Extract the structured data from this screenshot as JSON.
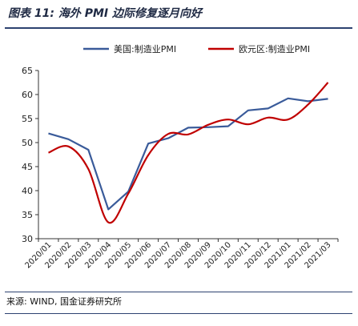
{
  "header": {
    "title": "图表 11:  海外 PMI 边际修复逐月向好"
  },
  "footer": {
    "source": "来源: WIND, 国金证券研究所"
  },
  "chart_data": {
    "type": "line",
    "categories": [
      "2020/01",
      "2020/02",
      "2020/03",
      "2020/04",
      "2020/05",
      "2020/06",
      "2020/07",
      "2020/08",
      "2020/09",
      "2020/10",
      "2020/11",
      "2020/12",
      "2021/01",
      "2021/02",
      "2021/03"
    ],
    "series": [
      {
        "name": "美国:制造业PMI",
        "color": "#3a5b9a",
        "smooth": false,
        "values": [
          51.9,
          50.7,
          48.5,
          36.1,
          39.8,
          49.8,
          50.9,
          53.1,
          53.2,
          53.4,
          56.7,
          57.1,
          59.2,
          58.6,
          59.1
        ]
      },
      {
        "name": "欧元区:制造业PMI",
        "color": "#c00000",
        "smooth": true,
        "values": [
          47.9,
          49.2,
          44.5,
          33.4,
          39.4,
          47.4,
          51.8,
          51.7,
          53.7,
          54.8,
          53.8,
          55.2,
          54.8,
          57.9,
          62.5
        ]
      }
    ],
    "ylim": [
      30,
      65
    ],
    "yticks": [
      30,
      35,
      40,
      45,
      50,
      55,
      60,
      65
    ],
    "legend_position": "top",
    "grid": false
  }
}
